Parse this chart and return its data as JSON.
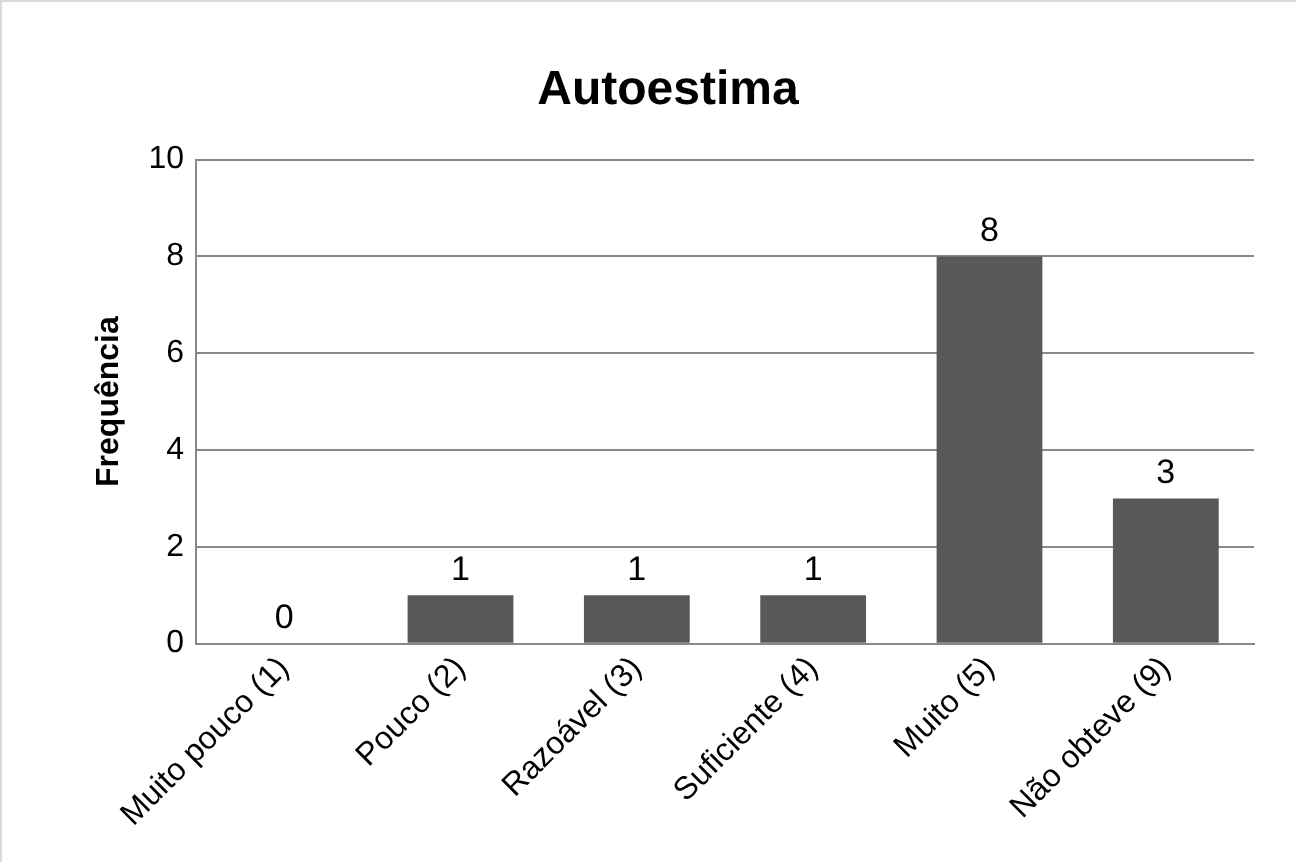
{
  "chart_data": {
    "type": "bar",
    "title": "Autoestima",
    "ylabel": "Frequência",
    "categories": [
      "Muito pouco (1)",
      "Pouco (2)",
      "Razoável (3)",
      "Suficiente (4)",
      "Muito (5)",
      "Não obteve (9)"
    ],
    "values": [
      0,
      1,
      1,
      1,
      8,
      3
    ],
    "color": "#595959",
    "ylim": [
      0,
      10
    ],
    "yticks": [
      0,
      2,
      4,
      6,
      8,
      10
    ],
    "grid": "y",
    "data_labels": true,
    "legend": false
  }
}
